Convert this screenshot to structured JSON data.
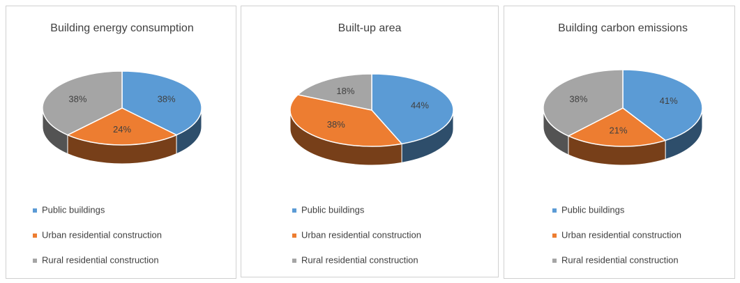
{
  "chart_data": [
    {
      "type": "pie",
      "title": "Building energy consumption",
      "categories": [
        "Public buildings",
        "Urban residential construction",
        "Rural residential construction"
      ],
      "values": [
        38,
        24,
        38
      ],
      "value_labels": [
        "38%",
        "24%",
        "38%"
      ],
      "colors": [
        "#5b9bd5",
        "#ed7d31",
        "#a5a5a5"
      ]
    },
    {
      "type": "pie",
      "title": "Built-up area",
      "categories": [
        "Public buildings",
        "Urban residential construction",
        "Rural residential construction"
      ],
      "values": [
        44,
        38,
        18
      ],
      "value_labels": [
        "44%",
        "38%",
        "18%"
      ],
      "colors": [
        "#5b9bd5",
        "#ed7d31",
        "#a5a5a5"
      ]
    },
    {
      "type": "pie",
      "title": "Building carbon emissions",
      "categories": [
        "Public buildings",
        "Urban residential construction",
        "Rural residential construction"
      ],
      "values": [
        41,
        21,
        38
      ],
      "value_labels": [
        "41%",
        "21%",
        "38%"
      ],
      "colors": [
        "#5b9bd5",
        "#ed7d31",
        "#a5a5a5"
      ]
    }
  ]
}
